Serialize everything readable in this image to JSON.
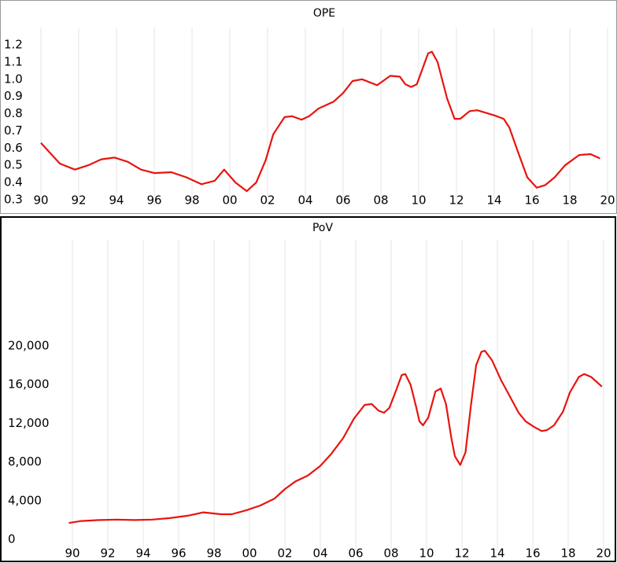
{
  "chart_data": [
    {
      "type": "line",
      "title": "OPE",
      "grid": "x",
      "xlim": [
        1990,
        2020
      ],
      "ylim": [
        0.3,
        1.2
      ],
      "xticks": [
        {
          "value": 1990,
          "label": "90"
        },
        {
          "value": 1992,
          "label": "92"
        },
        {
          "value": 1994,
          "label": "94"
        },
        {
          "value": 1996,
          "label": "96"
        },
        {
          "value": 1998,
          "label": "98"
        },
        {
          "value": 2000,
          "label": "00"
        },
        {
          "value": 2002,
          "label": "02"
        },
        {
          "value": 2004,
          "label": "04"
        },
        {
          "value": 2006,
          "label": "06"
        },
        {
          "value": 2008,
          "label": "08"
        },
        {
          "value": 2010,
          "label": "10"
        },
        {
          "value": 2012,
          "label": "12"
        },
        {
          "value": 2014,
          "label": "14"
        },
        {
          "value": 2016,
          "label": "16"
        },
        {
          "value": 2018,
          "label": "18"
        },
        {
          "value": 2020,
          "label": "20"
        }
      ],
      "yticks": [
        0.3,
        0.4,
        0.5,
        0.6,
        0.7,
        0.8,
        0.9,
        {
          "value": 1,
          "label": "1.0"
        },
        1.1,
        1.2
      ],
      "x": [
        1990,
        1991,
        1991.8,
        1992.5,
        1993.2,
        1993.9,
        1994.6,
        1995.3,
        1996,
        1996.9,
        1997.7,
        1998.5,
        1999.2,
        1999.7,
        2000.3,
        2000.9,
        2001.4,
        2001.9,
        2002.3,
        2002.9,
        2003.3,
        2003.8,
        2004.2,
        2004.7,
        2005.5,
        2006,
        2006.5,
        2007,
        2007.8,
        2008.5,
        2009,
        2009.3,
        2009.6,
        2009.9,
        2010.5,
        2010.7,
        2011,
        2011.5,
        2011.9,
        2012.2,
        2012.7,
        2013.1,
        2014,
        2014.5,
        2014.8,
        2015.25,
        2015.75,
        2016.25,
        2016.7,
        2017.2,
        2017.75,
        2018.5,
        2019.1,
        2019.6
      ],
      "series": [
        {
          "name": "OPE",
          "color": "#e8140f",
          "values": [
            0.63,
            0.51,
            0.475,
            0.5,
            0.535,
            0.545,
            0.52,
            0.475,
            0.455,
            0.46,
            0.43,
            0.39,
            0.41,
            0.475,
            0.4,
            0.35,
            0.4,
            0.53,
            0.68,
            0.78,
            0.785,
            0.765,
            0.785,
            0.83,
            0.87,
            0.92,
            0.99,
            1.0,
            0.965,
            1.02,
            1.015,
            0.97,
            0.955,
            0.97,
            1.15,
            1.16,
            1.1,
            0.89,
            0.77,
            0.77,
            0.815,
            0.82,
            0.79,
            0.77,
            0.72,
            0.58,
            0.43,
            0.37,
            0.385,
            0.43,
            0.5,
            0.56,
            0.565,
            0.54
          ]
        }
      ]
    },
    {
      "type": "line",
      "title": "PoV",
      "grid": "x",
      "xlim": [
        1990,
        2020
      ],
      "ylim": [
        0,
        20000
      ],
      "xticks": [
        {
          "value": 1990,
          "label": "90"
        },
        {
          "value": 1992,
          "label": "92"
        },
        {
          "value": 1994,
          "label": "94"
        },
        {
          "value": 1996,
          "label": "96"
        },
        {
          "value": 1998,
          "label": "98"
        },
        {
          "value": 2000,
          "label": "00"
        },
        {
          "value": 2002,
          "label": "02"
        },
        {
          "value": 2004,
          "label": "04"
        },
        {
          "value": 2006,
          "label": "06"
        },
        {
          "value": 2008,
          "label": "08"
        },
        {
          "value": 2010,
          "label": "10"
        },
        {
          "value": 2012,
          "label": "12"
        },
        {
          "value": 2014,
          "label": "14"
        },
        {
          "value": 2016,
          "label": "16"
        },
        {
          "value": 2018,
          "label": "18"
        },
        {
          "value": 2020,
          "label": "20"
        }
      ],
      "yticks": [
        0,
        {
          "value": 4000,
          "label": "4,000"
        },
        {
          "value": 8000,
          "label": "8,000"
        },
        {
          "value": 12000,
          "label": "12,000"
        },
        {
          "value": 16000,
          "label": "16,000"
        },
        {
          "value": 20000,
          "label": "20,000"
        }
      ],
      "x": [
        1989.8,
        1990.5,
        1991.5,
        1992.5,
        1993.5,
        1994.5,
        1995.5,
        1996.5,
        1997.4,
        1998.4,
        1999,
        1999.8,
        2000.6,
        2001.4,
        2002,
        2002.6,
        2003.3,
        2004,
        2004.6,
        2005.3,
        2005.9,
        2006.5,
        2006.9,
        2007.3,
        2007.6,
        2007.9,
        2008.3,
        2008.6,
        2008.8,
        2009.1,
        2009.4,
        2009.6,
        2009.8,
        2010.1,
        2010.5,
        2010.8,
        2011.1,
        2011.4,
        2011.6,
        2011.9,
        2012.2,
        2012.5,
        2012.8,
        2013.1,
        2013.3,
        2013.7,
        2014.2,
        2014.7,
        2015.2,
        2015.6,
        2016.1,
        2016.5,
        2016.8,
        2017.2,
        2017.7,
        2018.1,
        2018.6,
        2018.9,
        2019.3,
        2019.6,
        2019.9
      ],
      "series": [
        {
          "name": "PoV",
          "color": "#e8140f",
          "values": [
            1700,
            1900,
            2000,
            2050,
            2000,
            2050,
            2200,
            2450,
            2800,
            2600,
            2600,
            3000,
            3500,
            4200,
            5200,
            6000,
            6600,
            7600,
            8800,
            10500,
            12500,
            13900,
            14000,
            13300,
            13100,
            13600,
            15500,
            17000,
            17100,
            16000,
            13800,
            12200,
            11800,
            12600,
            15300,
            15600,
            14000,
            10500,
            8600,
            7700,
            9000,
            13800,
            18000,
            19400,
            19500,
            18500,
            16500,
            14800,
            13100,
            12200,
            11600,
            11200,
            11300,
            11800,
            13200,
            15200,
            16800,
            17100,
            16800,
            16300,
            15800
          ]
        }
      ]
    }
  ]
}
